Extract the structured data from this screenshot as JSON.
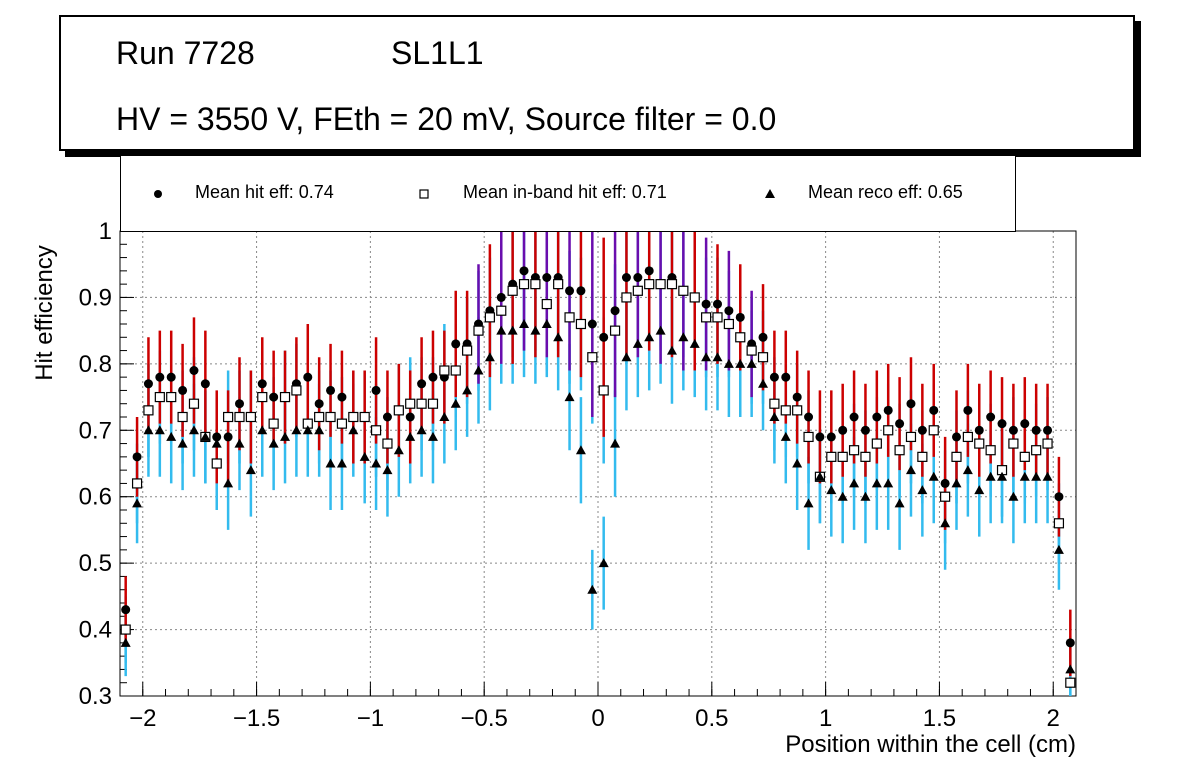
{
  "info": {
    "run": "Run 7728",
    "layer": "SL1L1",
    "conditions": "HV = 3550 V, FEth = 20 mV, Source filter = 0.0"
  },
  "legend": [
    {
      "marker": "circle",
      "label": "Mean hit  eff: 0.74"
    },
    {
      "marker": "open-square",
      "label": "Mean in-band hit eff: 0.71"
    },
    {
      "marker": "triangle",
      "label": "Mean reco eff: 0.65"
    }
  ],
  "colors": {
    "hit_marker": "#000000",
    "hit_error": "#cc0000",
    "hit_error_alt": "#6a0dad",
    "inband_error": "#33bbee",
    "reco_error": "#33bbee",
    "grid": "#888888"
  },
  "chart_data": {
    "type": "scatter",
    "title": "",
    "xlabel": "Position within the cell (cm)",
    "ylabel": "Hit efficiency",
    "xlim": [
      -2.1,
      2.1
    ],
    "ylim": [
      0.3,
      1.0
    ],
    "xticks": [
      -2,
      -1.5,
      -1,
      -0.5,
      0,
      0.5,
      1,
      1.5,
      2
    ],
    "xtick_labels": [
      "−2",
      "−1.5",
      "−1",
      "−0.5",
      "0",
      "0.5",
      "1",
      "1.5",
      "2"
    ],
    "yticks": [
      0.3,
      0.4,
      0.5,
      0.6,
      0.7,
      0.8,
      0.9,
      1.0
    ],
    "ytick_labels": [
      "0.3",
      "0.4",
      "0.5",
      "0.6",
      "0.7",
      "0.8",
      "0.9",
      "1"
    ],
    "grid": true,
    "x": [
      -2.075,
      -2.025,
      -1.975,
      -1.925,
      -1.875,
      -1.825,
      -1.775,
      -1.725,
      -1.675,
      -1.625,
      -1.575,
      -1.525,
      -1.475,
      -1.425,
      -1.375,
      -1.325,
      -1.275,
      -1.225,
      -1.175,
      -1.125,
      -1.075,
      -1.025,
      -0.975,
      -0.925,
      -0.875,
      -0.825,
      -0.775,
      -0.725,
      -0.675,
      -0.625,
      -0.575,
      -0.525,
      -0.475,
      -0.425,
      -0.375,
      -0.325,
      -0.275,
      -0.225,
      -0.175,
      -0.125,
      -0.075,
      -0.025,
      0.025,
      0.075,
      0.125,
      0.175,
      0.225,
      0.275,
      0.325,
      0.375,
      0.425,
      0.475,
      0.525,
      0.575,
      0.625,
      0.675,
      0.725,
      0.775,
      0.825,
      0.875,
      0.925,
      0.975,
      1.025,
      1.075,
      1.125,
      1.175,
      1.225,
      1.275,
      1.325,
      1.375,
      1.425,
      1.475,
      1.525,
      1.575,
      1.625,
      1.675,
      1.725,
      1.775,
      1.825,
      1.875,
      1.925,
      1.975,
      2.025,
      2.075
    ],
    "series": [
      {
        "name": "Mean hit  eff: 0.74",
        "marker": "circle",
        "values": [
          0.43,
          0.66,
          0.77,
          0.78,
          0.78,
          0.76,
          0.79,
          0.77,
          0.69,
          0.69,
          0.74,
          0.72,
          0.77,
          0.75,
          0.75,
          0.77,
          0.78,
          0.74,
          0.76,
          0.75,
          0.72,
          0.72,
          0.76,
          0.72,
          0.73,
          0.72,
          0.77,
          0.78,
          0.78,
          0.83,
          0.83,
          0.86,
          0.88,
          0.9,
          0.92,
          0.94,
          0.93,
          0.93,
          0.93,
          0.91,
          0.91,
          0.86,
          0.84,
          0.88,
          0.93,
          0.93,
          0.94,
          0.92,
          0.93,
          0.91,
          0.9,
          0.89,
          0.89,
          0.88,
          0.87,
          0.83,
          0.84,
          0.78,
          0.78,
          0.75,
          0.72,
          0.69,
          0.69,
          0.7,
          0.72,
          0.7,
          0.72,
          0.73,
          0.71,
          0.74,
          0.7,
          0.73,
          0.62,
          0.69,
          0.73,
          0.7,
          0.72,
          0.71,
          0.7,
          0.71,
          0.7,
          0.7,
          0.6,
          0.38
        ],
        "err": [
          0.05,
          0.06,
          0.07,
          0.07,
          0.07,
          0.07,
          0.08,
          0.08,
          0.07,
          0.07,
          0.07,
          0.07,
          0.07,
          0.07,
          0.07,
          0.07,
          0.08,
          0.07,
          0.07,
          0.07,
          0.07,
          0.07,
          0.08,
          0.07,
          0.07,
          0.07,
          0.07,
          0.07,
          0.07,
          0.08,
          0.08,
          0.09,
          0.1,
          0.1,
          0.12,
          0.12,
          0.12,
          0.12,
          0.12,
          0.12,
          0.13,
          0.14,
          0.15,
          0.13,
          0.12,
          0.12,
          0.12,
          0.12,
          0.12,
          0.12,
          0.11,
          0.1,
          0.09,
          0.09,
          0.08,
          0.08,
          0.08,
          0.07,
          0.07,
          0.07,
          0.07,
          0.07,
          0.07,
          0.07,
          0.07,
          0.07,
          0.07,
          0.07,
          0.07,
          0.07,
          0.07,
          0.07,
          0.07,
          0.07,
          0.07,
          0.07,
          0.07,
          0.07,
          0.07,
          0.07,
          0.07,
          0.07,
          0.06,
          0.05
        ]
      },
      {
        "name": "Mean in-band hit eff: 0.71",
        "marker": "open-square",
        "values": [
          0.4,
          0.62,
          0.73,
          0.75,
          0.75,
          0.72,
          0.74,
          0.69,
          0.65,
          0.72,
          0.72,
          0.72,
          0.75,
          0.71,
          0.75,
          0.76,
          0.71,
          0.72,
          0.72,
          0.71,
          0.72,
          0.72,
          0.7,
          0.68,
          0.73,
          0.74,
          0.74,
          0.74,
          0.79,
          0.79,
          0.82,
          0.85,
          0.87,
          0.88,
          0.91,
          0.92,
          0.92,
          0.89,
          0.92,
          0.87,
          0.86,
          0.81,
          0.76,
          0.85,
          0.9,
          0.91,
          0.92,
          0.92,
          0.92,
          0.91,
          0.9,
          0.87,
          0.87,
          0.86,
          0.84,
          0.82,
          0.81,
          0.74,
          0.73,
          0.73,
          0.69,
          0.63,
          0.66,
          0.66,
          0.67,
          0.66,
          0.68,
          0.7,
          0.67,
          0.69,
          0.66,
          0.7,
          0.6,
          0.66,
          0.69,
          0.68,
          0.67,
          0.64,
          0.68,
          0.66,
          0.67,
          0.68,
          0.56,
          0.32
        ],
        "err": [
          0.05,
          0.06,
          0.07,
          0.07,
          0.07,
          0.07,
          0.07,
          0.07,
          0.07,
          0.07,
          0.07,
          0.07,
          0.07,
          0.07,
          0.07,
          0.07,
          0.07,
          0.07,
          0.07,
          0.07,
          0.07,
          0.07,
          0.07,
          0.07,
          0.07,
          0.07,
          0.07,
          0.07,
          0.07,
          0.07,
          0.08,
          0.09,
          0.09,
          0.1,
          0.1,
          0.1,
          0.1,
          0.1,
          0.1,
          0.1,
          0.1,
          0.1,
          0.11,
          0.1,
          0.1,
          0.1,
          0.1,
          0.1,
          0.1,
          0.1,
          0.09,
          0.09,
          0.09,
          0.08,
          0.08,
          0.08,
          0.07,
          0.07,
          0.07,
          0.07,
          0.07,
          0.07,
          0.07,
          0.07,
          0.07,
          0.07,
          0.07,
          0.07,
          0.07,
          0.07,
          0.07,
          0.07,
          0.07,
          0.07,
          0.07,
          0.07,
          0.07,
          0.07,
          0.07,
          0.07,
          0.07,
          0.07,
          0.06,
          0.05
        ]
      },
      {
        "name": "Mean reco eff: 0.65",
        "marker": "triangle",
        "values": [
          0.38,
          0.59,
          0.7,
          0.7,
          0.69,
          0.68,
          0.7,
          0.69,
          0.68,
          0.62,
          0.68,
          0.64,
          0.7,
          0.68,
          0.69,
          0.7,
          0.7,
          0.7,
          0.65,
          0.65,
          0.7,
          0.66,
          0.65,
          0.64,
          0.67,
          0.69,
          0.7,
          0.69,
          0.72,
          0.74,
          0.76,
          0.79,
          0.81,
          0.85,
          0.85,
          0.86,
          0.85,
          0.86,
          0.84,
          0.75,
          0.67,
          0.46,
          0.5,
          0.68,
          0.81,
          0.83,
          0.84,
          0.85,
          0.82,
          0.84,
          0.83,
          0.81,
          0.81,
          0.8,
          0.8,
          0.8,
          0.77,
          0.72,
          0.69,
          0.65,
          0.59,
          0.63,
          0.61,
          0.6,
          0.62,
          0.6,
          0.62,
          0.62,
          0.59,
          0.64,
          0.61,
          0.63,
          0.56,
          0.62,
          0.64,
          0.61,
          0.63,
          0.63,
          0.6,
          0.63,
          0.63,
          0.63,
          0.52,
          0.34
        ],
        "err": [
          0.05,
          0.06,
          0.07,
          0.07,
          0.07,
          0.07,
          0.07,
          0.07,
          0.07,
          0.07,
          0.07,
          0.07,
          0.07,
          0.07,
          0.07,
          0.07,
          0.07,
          0.07,
          0.07,
          0.07,
          0.07,
          0.07,
          0.07,
          0.07,
          0.07,
          0.07,
          0.07,
          0.07,
          0.07,
          0.07,
          0.07,
          0.08,
          0.08,
          0.08,
          0.08,
          0.08,
          0.08,
          0.08,
          0.08,
          0.08,
          0.08,
          0.06,
          0.07,
          0.08,
          0.08,
          0.08,
          0.08,
          0.08,
          0.08,
          0.08,
          0.08,
          0.08,
          0.08,
          0.08,
          0.08,
          0.08,
          0.07,
          0.07,
          0.07,
          0.07,
          0.07,
          0.07,
          0.07,
          0.07,
          0.07,
          0.07,
          0.07,
          0.07,
          0.07,
          0.07,
          0.07,
          0.07,
          0.07,
          0.07,
          0.07,
          0.07,
          0.07,
          0.07,
          0.07,
          0.07,
          0.07,
          0.07,
          0.06,
          0.05
        ]
      }
    ]
  }
}
